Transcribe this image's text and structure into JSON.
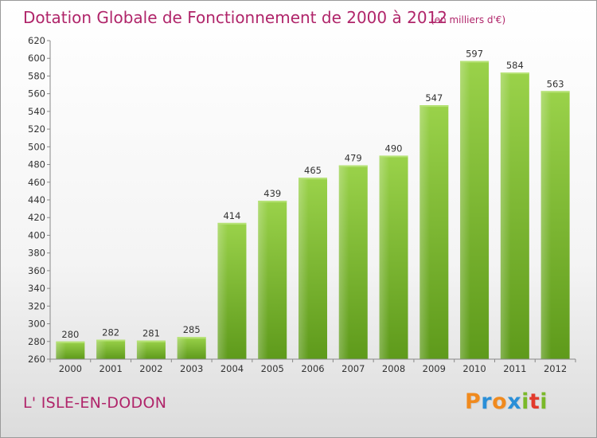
{
  "chart_data": {
    "type": "bar",
    "title": "Dotation Globale de Fonctionnement de 2000 à 2012",
    "subtitle": "(en milliers d'€)",
    "categories": [
      "2000",
      "2001",
      "2002",
      "2003",
      "2004",
      "2005",
      "2006",
      "2007",
      "2008",
      "2009",
      "2010",
      "2011",
      "2012"
    ],
    "values": [
      280,
      282,
      281,
      285,
      414,
      439,
      465,
      479,
      490,
      547,
      597,
      584,
      563
    ],
    "ylim": [
      260,
      620
    ],
    "yticks": [
      260,
      280,
      300,
      320,
      340,
      360,
      380,
      400,
      420,
      440,
      460,
      480,
      500,
      520,
      540,
      560,
      580,
      600,
      620
    ],
    "xlabel": "",
    "ylabel": "",
    "grid": false,
    "bar_color": "#7cb82f"
  },
  "commune": "L' ISLE-EN-DODON",
  "logo": {
    "letters": [
      "P",
      "r",
      "o",
      "x",
      "i",
      "t",
      "i"
    ],
    "colors": [
      "#f08a1e",
      "#2a8fd8",
      "#f08a1e",
      "#2a8fd8",
      "#7ab929",
      "#e23a2c",
      "#7ab929"
    ]
  }
}
